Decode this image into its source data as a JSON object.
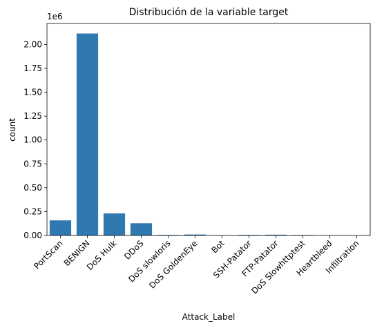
{
  "chart_data": {
    "type": "bar",
    "title": "Distribución de la variable target",
    "xlabel": "Attack_Label",
    "ylabel": "count",
    "y_scale_label": "1e6",
    "categories": [
      "PortScan",
      "BENIGN",
      "DoS Hulk",
      "DDoS",
      "DoS slowloris",
      "DoS GoldenEye",
      "Bot",
      "SSH-Patator",
      "FTP-Patator",
      "DoS Slowhttptest",
      "Heartbleed",
      "Infiltration"
    ],
    "values": [
      0.158,
      2.115,
      0.231,
      0.128,
      0.006,
      0.01,
      0.002,
      0.006,
      0.008,
      0.005,
      1e-05,
      4e-05
    ],
    "yticks": [
      "0.00",
      "0.25",
      "0.50",
      "0.75",
      "1.00",
      "1.25",
      "1.50",
      "1.75",
      "2.00"
    ],
    "ylim": [
      0,
      2.22
    ],
    "bar_color": "#2f78b0",
    "grid": false,
    "legend": false
  }
}
